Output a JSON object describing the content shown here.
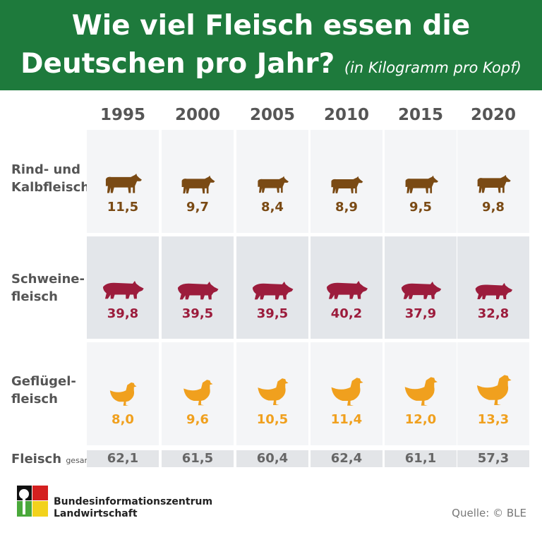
{
  "header": {
    "title_line1": "Wie viel Fleisch essen die",
    "title_line2": "Deutschen pro Jahr?",
    "subtitle": "(in Kilogramm pro Kopf)"
  },
  "chart_data": {
    "type": "table",
    "categories": [
      "1995",
      "2000",
      "2005",
      "2010",
      "2015",
      "2020"
    ],
    "series": [
      {
        "name": "Rind- und Kalbfleisch",
        "label_line1": "Rind- und",
        "label_line2": "Kalbfleisch",
        "icon": "cow-icon",
        "color": "#7a4a14",
        "values": [
          "11,5",
          "9,7",
          "8,4",
          "8,9",
          "9,5",
          "9,8"
        ]
      },
      {
        "name": "Schweinefleisch",
        "label_line1": "Schweine-",
        "label_line2": "fleisch",
        "icon": "pig-icon",
        "color": "#9c1c3c",
        "values": [
          "39,8",
          "39,5",
          "39,5",
          "40,2",
          "37,9",
          "32,8"
        ]
      },
      {
        "name": "Geflügelfleisch",
        "label_line1": "Geflügel-",
        "label_line2": "fleisch",
        "icon": "chicken-icon",
        "color": "#f0a01e",
        "values": [
          "8,0",
          "9,6",
          "10,5",
          "11,4",
          "12,0",
          "13,3"
        ]
      }
    ],
    "total": {
      "label": "Fleisch",
      "label_small": "gesamt",
      "values": [
        "62,1",
        "61,5",
        "60,4",
        "62,4",
        "61,1",
        "57,3"
      ]
    }
  },
  "footer": {
    "org_line1": "Bundesinformationszentrum",
    "org_line2": "Landwirtschaft",
    "source": "Quelle: © BLE"
  }
}
